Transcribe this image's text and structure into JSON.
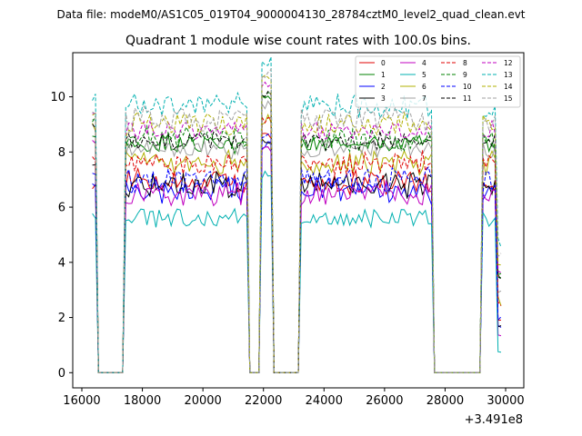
{
  "chart_data": {
    "type": "line",
    "suptitle": "Data file: modeM0/AS1C05_019T04_9000004130_28784cztM0_level2_quad_clean.evt",
    "title": "Quadrant 1 module wise count rates with 100.0s bins.",
    "xlabel": "",
    "ylabel": "",
    "x_offset_label": "+3.491e8",
    "xlim": [
      15700,
      30600
    ],
    "ylim": [
      -0.55,
      11.6
    ],
    "x_ticks": [
      16000,
      18000,
      20000,
      22000,
      24000,
      26000,
      28000,
      30000
    ],
    "x_tick_labels": [
      "16000",
      "18000",
      "20000",
      "22000",
      "24000",
      "26000",
      "28000",
      "30000"
    ],
    "y_ticks": [
      0,
      2,
      4,
      6,
      8,
      10
    ],
    "y_tick_labels": [
      "0",
      "2",
      "4",
      "6",
      "8",
      "10"
    ],
    "bin_seconds": 100,
    "legend_position": "top-right",
    "segments": [
      {
        "start": 16350,
        "end": 16550,
        "state": "on"
      },
      {
        "start": 16550,
        "end": 17450,
        "state": "off"
      },
      {
        "start": 17450,
        "end": 21550,
        "state": "on"
      },
      {
        "start": 21550,
        "end": 21950,
        "state": "off"
      },
      {
        "start": 21950,
        "end": 22350,
        "state": "on"
      },
      {
        "start": 22350,
        "end": 23250,
        "state": "off"
      },
      {
        "start": 23250,
        "end": 27650,
        "state": "on"
      },
      {
        "start": 27650,
        "end": 29250,
        "state": "off"
      },
      {
        "start": 29250,
        "end": 29850,
        "state": "on"
      }
    ],
    "series": [
      {
        "name": "0",
        "color": "#e00000",
        "dash": "solid",
        "mean_rate": 6.9,
        "start_rate": 6.7,
        "variation": 0.4
      },
      {
        "name": "1",
        "color": "#008000",
        "dash": "solid",
        "mean_rate": 8.3,
        "start_rate": 8.6,
        "variation": 0.3
      },
      {
        "name": "2",
        "color": "#0000ff",
        "dash": "solid",
        "mean_rate": 6.6,
        "start_rate": 6.9,
        "variation": 0.4
      },
      {
        "name": "3",
        "color": "#000000",
        "dash": "solid",
        "mean_rate": 6.8,
        "start_rate": 7.4,
        "variation": 0.4
      },
      {
        "name": "4",
        "color": "#c000c0",
        "dash": "solid",
        "mean_rate": 6.5,
        "start_rate": 8.4,
        "variation": 0.4
      },
      {
        "name": "5",
        "color": "#00b0b0",
        "dash": "solid",
        "mean_rate": 5.6,
        "start_rate": 5.7,
        "variation": 0.3
      },
      {
        "name": "6",
        "color": "#b0b000",
        "dash": "solid",
        "mean_rate": 7.6,
        "start_rate": 8.9,
        "variation": 0.4
      },
      {
        "name": "7",
        "color": "#a0a0a0",
        "dash": "solid",
        "mean_rate": 8.1,
        "start_rate": 9.1,
        "variation": 0.3
      },
      {
        "name": "8",
        "color": "#e00000",
        "dash": "dashed",
        "mean_rate": 7.6,
        "start_rate": 7.8,
        "variation": 0.4
      },
      {
        "name": "9",
        "color": "#008000",
        "dash": "dashed",
        "mean_rate": 8.5,
        "start_rate": 9.2,
        "variation": 0.4
      },
      {
        "name": "10",
        "color": "#0000ff",
        "dash": "dashed",
        "mean_rate": 7.0,
        "start_rate": 7.2,
        "variation": 0.4
      },
      {
        "name": "11",
        "color": "#000000",
        "dash": "dashed",
        "mean_rate": 8.4,
        "start_rate": 9.0,
        "variation": 0.3
      },
      {
        "name": "12",
        "color": "#c000c0",
        "dash": "dashed",
        "mean_rate": 8.8,
        "start_rate": 9.4,
        "variation": 0.3
      },
      {
        "name": "13",
        "color": "#00b0b0",
        "dash": "dashed",
        "mean_rate": 9.7,
        "start_rate": 10.0,
        "variation": 0.4
      },
      {
        "name": "14",
        "color": "#b0b000",
        "dash": "dashed",
        "mean_rate": 9.0,
        "start_rate": 9.3,
        "variation": 0.4
      },
      {
        "name": "15",
        "color": "#a0a0a0",
        "dash": "dashed",
        "mean_rate": 9.2,
        "start_rate": 9.5,
        "variation": 0.4
      }
    ]
  }
}
